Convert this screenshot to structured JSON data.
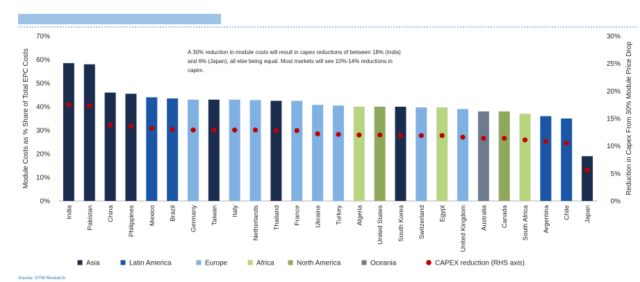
{
  "source": "Source: GTM Research",
  "chart_data": {
    "type": "bar",
    "categories": [
      "India",
      "Pakistan",
      "China",
      "Philippines",
      "Mexico",
      "Brazil",
      "Germany",
      "Taiwan",
      "Italy",
      "Netherlands",
      "Thailand",
      "France",
      "Ukraine",
      "Turkey",
      "Algeria",
      "United States",
      "South Korea",
      "Switzerland",
      "Egypt",
      "United Kingdom",
      "Australia",
      "Canada",
      "South Africa",
      "Argentina",
      "Chile",
      "Japan"
    ],
    "regions": [
      "Asia",
      "Asia",
      "Asia",
      "Asia",
      "Latin America",
      "Latin America",
      "Europe",
      "Asia",
      "Europe",
      "Europe",
      "Asia",
      "Europe",
      "Europe",
      "Europe",
      "Africa",
      "North America",
      "Asia",
      "Europe",
      "Africa",
      "Europe",
      "Oceania",
      "North America",
      "Africa",
      "Latin America",
      "Latin America",
      "Asia"
    ],
    "series": [
      {
        "values": [
          58.5,
          58,
          46,
          45.5,
          44,
          43.5,
          43,
          43,
          43,
          42.8,
          42.5,
          42.5,
          40.8,
          40.5,
          40,
          40,
          40,
          39.7,
          39.7,
          39,
          38,
          38,
          37,
          36,
          35,
          19
        ]
      },
      {
        "name": "CAPEX reduction (RHS axis)",
        "axis": "right",
        "values": [
          17.5,
          17.3,
          13.8,
          13.6,
          13.2,
          13,
          12.9,
          12.9,
          12.9,
          12.9,
          12.8,
          12.8,
          12.2,
          12.1,
          12,
          12,
          11.9,
          11.9,
          11.9,
          11.6,
          11.4,
          11.4,
          11.1,
          10.8,
          10.5,
          5.6
        ]
      }
    ],
    "ylabel": "Module Costs as % Share of Total EPC Costs",
    "ylabel_right": "Reduction in Capex From 30% Module Price Drop",
    "ylim": [
      0,
      70
    ],
    "ylim_right": [
      0,
      30
    ],
    "yticks": [
      "0%",
      "10%",
      "20%",
      "30%",
      "40%",
      "50%",
      "60%",
      "70%"
    ],
    "yticks_right": [
      "0%",
      "5%",
      "10%",
      "15%",
      "20%",
      "25%",
      "30%"
    ],
    "annotation": [
      "A 30% reduction in module costs will result in capex reductions of between 18% (India)",
      "and 6% (Japan), all else being equal. Most markets will see 10%-14% reductions in",
      "capex."
    ],
    "legend": [
      {
        "label": "Asia",
        "color": "#1b2d4f",
        "marker": "square"
      },
      {
        "label": "Latin America",
        "color": "#1a56a5",
        "marker": "square"
      },
      {
        "label": "Europe",
        "color": "#7fb1e2",
        "marker": "square"
      },
      {
        "label": "Africa",
        "color": "#b7d57f",
        "marker": "square"
      },
      {
        "label": "North America",
        "color": "#8fa85c",
        "marker": "square"
      },
      {
        "label": "Oceania",
        "color": "#6e7b8c",
        "marker": "square"
      },
      {
        "label": "CAPEX reduction (RHS axis)",
        "color": "#c00000",
        "marker": "circle"
      }
    ],
    "legend_position": "bottom",
    "grid": false
  }
}
